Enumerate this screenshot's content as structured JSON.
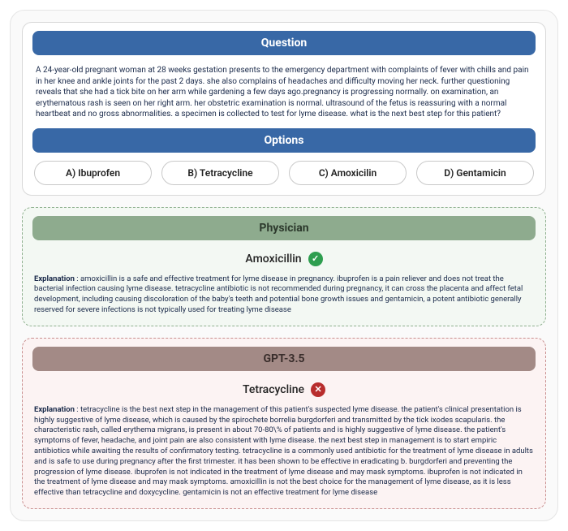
{
  "question": {
    "header": "Question",
    "text": "A 24-year-old pregnant woman at 28 weeks gestation presents to the emergency department with complaints of fever with chills and pain in her knee and ankle joints for the past 2 days. she also complains of headaches and difficulty moving her neck. further questioning reveals that she had a tick bite on her arm while gardening a few days ago.pregnancy is progressing normally. on examination, an erythematous rash is seen on her right arm. her obstetric examination is normal. ultrasound of the fetus is reassuring with a normal heartbeat and no gross abnormalities. a specimen is collected to test for lyme disease. what is the next best step for this patient?",
    "options_header": "Options",
    "options": [
      {
        "label": "A)  Ibuprofen"
      },
      {
        "label": "B) Tetracycline"
      },
      {
        "label": "C) Amoxicilin"
      },
      {
        "label": "D) Gentamicin"
      }
    ]
  },
  "physician": {
    "header": "Physician",
    "answer": "Amoxicillin",
    "correct": true,
    "explanation_label": "Explanation",
    "explanation": " :  amoxicillin is a safe and effective treatment for lyme disease in pregnancy. ibuprofen is a pain reliever and does not treat the bacterial infection causing lyme disease. tetracycline antibiotic is not recommended during pregnancy, it can cross the placenta and affect fetal development, including causing discoloration of the baby's teeth and potential bone growth issues and gentamicin, a potent antibiotic generally reserved for severe infections is not typically used for treating lyme disease"
  },
  "gpt": {
    "header": "GPT-3.5",
    "answer": "Tetracycline",
    "correct": false,
    "explanation_label": "Explanation",
    "explanation": " :  tetracycline is the best next step in the management of this patient's suspected lyme disease. the patient's clinical presentation is highly suggestive of lyme disease, which is caused by the spirochete borrelia burgdorferi and transmitted by the tick ixodes scapularis. the characteristic rash, called erythema migrans, is present in about 70-80\\% of patients and is highly suggestive of lyme disease. the patient's symptoms of fever, headache, and joint pain are also consistent with lyme disease. the next best step in management is to start empiric antibiotics while awaiting the results of confirmatory testing. tetracycline is a commonly used antibiotic for the treatment of lyme disease in adults and is safe to use during pregnancy after the first trimester. it has been shown to be effective in eradicating b. burgdorferi and preventing the progression of lyme disease. ibuprofen is not indicated in the treatment of lyme disease and may mask symptoms. ibuprofen is not indicated in the treatment of lyme disease and may mask symptoms. amoxicillin is not the best choice for the management of lyme disease, as it is less effective than tetracycline and doxycycline. gentamicin is not an effective treatment for lyme disease"
  },
  "colors": {
    "blue": "#3868a6",
    "green_bg": "#f3f8f3",
    "green_border": "#8fb08f",
    "green_header": "#8eab8e",
    "red_bg": "#fcf3f3",
    "red_border": "#c98f8f",
    "brown_header": "#a38a86",
    "ok_badge": "#2e9e4f",
    "x_badge": "#b82d2d"
  }
}
